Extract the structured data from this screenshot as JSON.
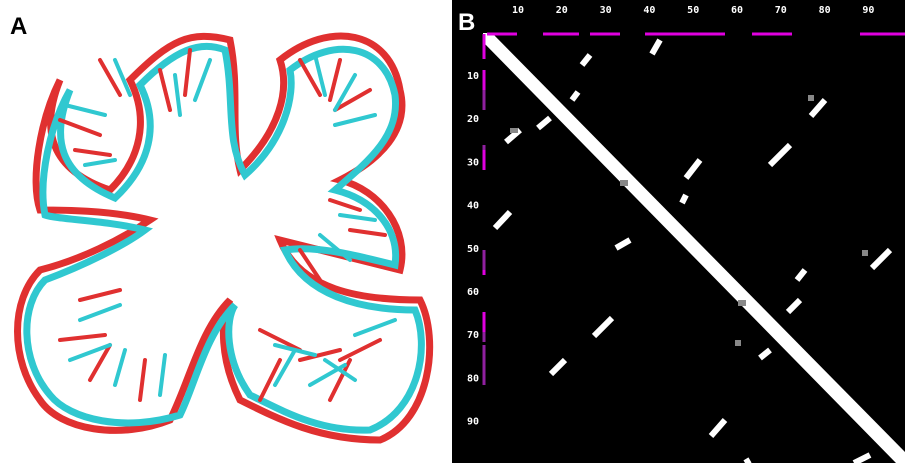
{
  "panels": [
    {
      "label": "A"
    },
    {
      "label": "B",
      "top_ticks": [
        "10",
        "20",
        "30",
        "40",
        "50",
        "60",
        "70",
        "80",
        "90"
      ],
      "left_ticks": [
        "10",
        "20",
        "30",
        "40",
        "50",
        "60",
        "70",
        "80",
        "90"
      ]
    }
  ]
}
